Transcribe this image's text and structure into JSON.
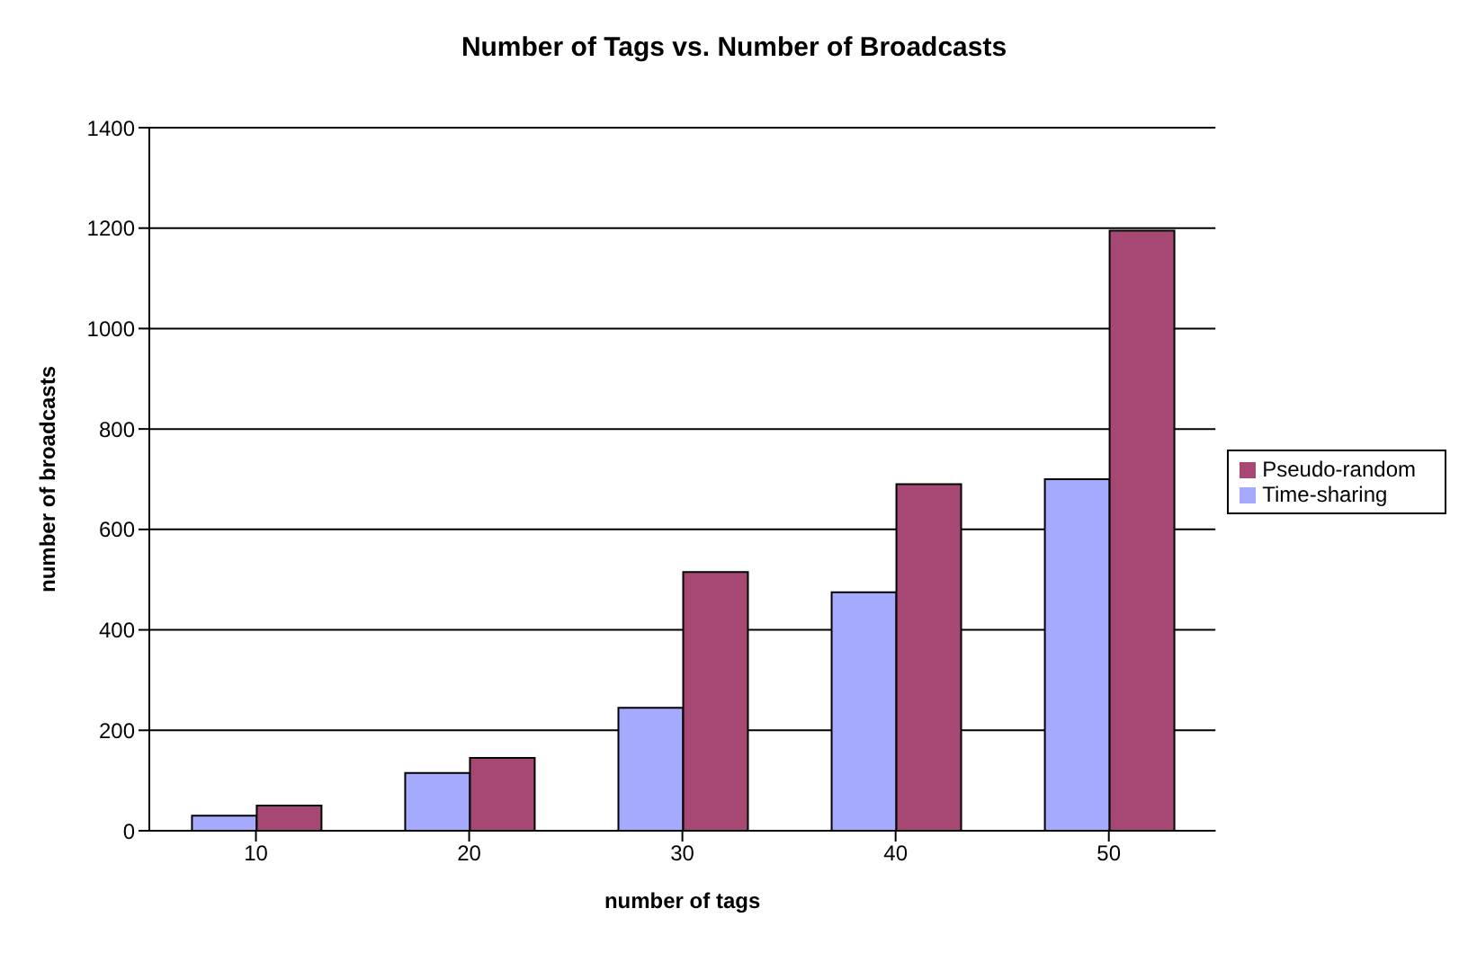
{
  "chart_data": {
    "type": "bar",
    "title": "Number of Tags vs. Number of Broadcasts",
    "xlabel": "number of tags",
    "ylabel": "number of broadcasts",
    "categories": [
      "10",
      "20",
      "30",
      "40",
      "50"
    ],
    "series": [
      {
        "name": "Time-sharing",
        "color": "#a6aaff",
        "values": [
          30,
          115,
          245,
          475,
          700
        ]
      },
      {
        "name": "Pseudo-random",
        "color": "#a64873",
        "values": [
          50,
          145,
          515,
          690,
          1195
        ]
      }
    ],
    "ylim": [
      0,
      1400
    ],
    "yticks": [
      0,
      200,
      400,
      600,
      800,
      1000,
      1200,
      1400
    ],
    "grid": "y",
    "legend": "right"
  }
}
